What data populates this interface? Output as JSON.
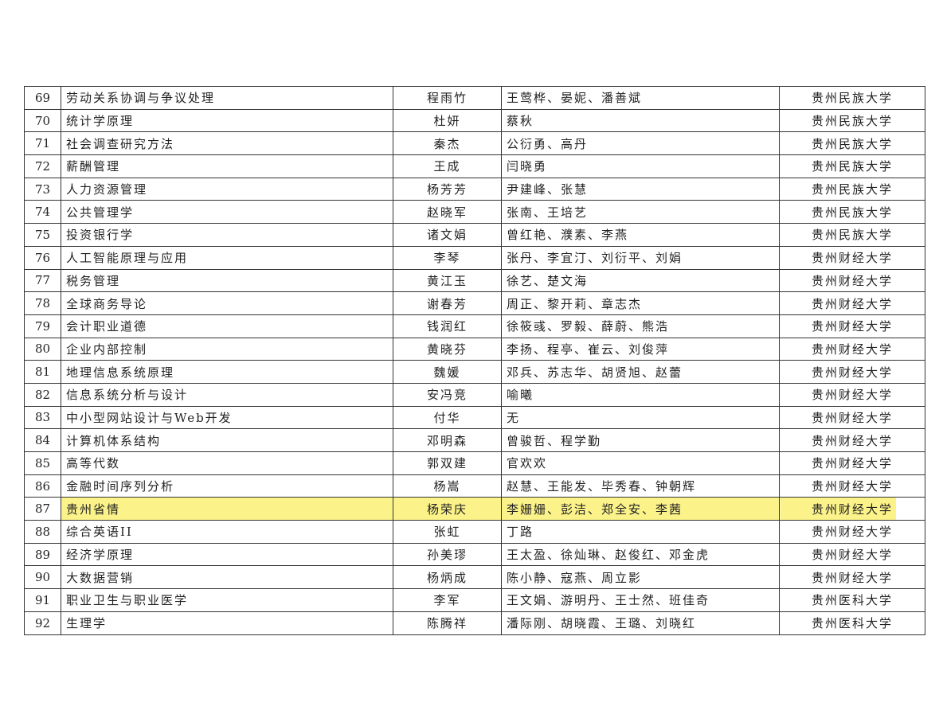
{
  "highlight_color": "#fbf38a",
  "highlighted_row": "87",
  "rows": [
    {
      "no": "69",
      "course": "劳动关系协调与争议处理",
      "leader": "程雨竹",
      "members": "王莺桦、晏妮、潘善斌",
      "university": "贵州民族大学"
    },
    {
      "no": "70",
      "course": "统计学原理",
      "leader": "杜妍",
      "members": "蔡秋",
      "university": "贵州民族大学"
    },
    {
      "no": "71",
      "course": "社会调查研究方法",
      "leader": "秦杰",
      "members": "公衍勇、高丹",
      "university": "贵州民族大学"
    },
    {
      "no": "72",
      "course": "薪酬管理",
      "leader": "王成",
      "members": "闫晓勇",
      "university": "贵州民族大学"
    },
    {
      "no": "73",
      "course": "人力资源管理",
      "leader": "杨芳芳",
      "members": "尹建峰、张慧",
      "university": "贵州民族大学"
    },
    {
      "no": "74",
      "course": "公共管理学",
      "leader": "赵晓军",
      "members": "张南、王培艺",
      "university": "贵州民族大学"
    },
    {
      "no": "75",
      "course": "投资银行学",
      "leader": "诸文娟",
      "members": "曾红艳、濮素、李燕",
      "university": "贵州民族大学"
    },
    {
      "no": "76",
      "course": "人工智能原理与应用",
      "leader": "李琴",
      "members": "张丹、李宜汀、刘衍平、刘娟",
      "university": "贵州财经大学"
    },
    {
      "no": "77",
      "course": "税务管理",
      "leader": "黄江玉",
      "members": "徐艺、楚文海",
      "university": "贵州财经大学"
    },
    {
      "no": "78",
      "course": "全球商务导论",
      "leader": "谢春芳",
      "members": "周正、黎开莉、章志杰",
      "university": "贵州财经大学"
    },
    {
      "no": "79",
      "course": "会计职业道德",
      "leader": "钱润红",
      "members": "徐筱彧、罗毅、薛蔚、熊浩",
      "university": "贵州财经大学"
    },
    {
      "no": "80",
      "course": "企业内部控制",
      "leader": "黄晓芬",
      "members": "李扬、程亭、崔云、刘俊萍",
      "university": "贵州财经大学"
    },
    {
      "no": "81",
      "course": "地理信息系统原理",
      "leader": "魏媛",
      "members": "邓兵、苏志华、胡贤旭、赵蕾",
      "university": "贵州财经大学"
    },
    {
      "no": "82",
      "course": "信息系统分析与设计",
      "leader": "安冯竞",
      "members": "喻曦",
      "university": "贵州财经大学"
    },
    {
      "no": "83",
      "course": "中小型网站设计与Web开发",
      "leader": "付华",
      "members": "无",
      "university": "贵州财经大学"
    },
    {
      "no": "84",
      "course": "计算机体系结构",
      "leader": "邓明森",
      "members": "曾骏哲、程学勤",
      "university": "贵州财经大学"
    },
    {
      "no": "85",
      "course": "高等代数",
      "leader": "郭双建",
      "members": "官欢欢",
      "university": "贵州财经大学"
    },
    {
      "no": "86",
      "course": "金融时间序列分析",
      "leader": "杨嵩",
      "members": "赵慧、王能发、毕秀春、钟朝辉",
      "university": "贵州财经大学"
    },
    {
      "no": "87",
      "course": "贵州省情",
      "leader": "杨荣庆",
      "members": "李姗姗、彭洁、郑全安、李茜",
      "university": "贵州财经大学"
    },
    {
      "no": "88",
      "course": "综合英语II",
      "leader": "张虹",
      "members": "丁路",
      "university": "贵州财经大学"
    },
    {
      "no": "89",
      "course": "经济学原理",
      "leader": "孙美璆",
      "members": "王太盈、徐灿琳、赵俊红、邓金虎",
      "university": "贵州财经大学"
    },
    {
      "no": "90",
      "course": "大数据营销",
      "leader": "杨炳成",
      "members": "陈小静、寇燕、周立影",
      "university": "贵州财经大学"
    },
    {
      "no": "91",
      "course": "职业卫生与职业医学",
      "leader": "李军",
      "members": "王文娟、游明丹、王士然、班佳奇",
      "university": "贵州医科大学"
    },
    {
      "no": "92",
      "course": "生理学",
      "leader": "陈腾祥",
      "members": "潘际刚、胡晓霞、王璐、刘晓红",
      "university": "贵州医科大学"
    }
  ]
}
